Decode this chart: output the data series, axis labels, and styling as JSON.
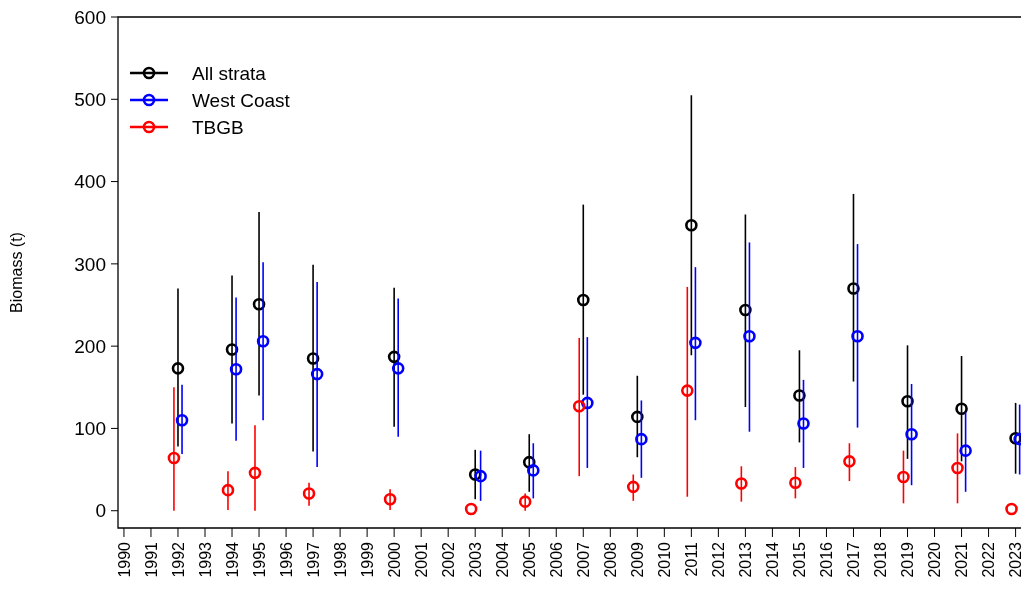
{
  "chart_data": {
    "type": "scatter",
    "ylabel": "Biomass (t)",
    "xlim": [
      1989.78,
      2023.2
    ],
    "xticks": [
      1990,
      1991,
      1992,
      1993,
      1994,
      1995,
      1996,
      1997,
      1998,
      1999,
      2000,
      2001,
      2002,
      2003,
      2004,
      2005,
      2006,
      2007,
      2008,
      2009,
      2010,
      2011,
      2012,
      2013,
      2014,
      2015,
      2016,
      2017,
      2018,
      2019,
      2020,
      2021,
      2022,
      2023
    ],
    "ylim": [
      -21,
      600
    ],
    "yticks": [
      0,
      100,
      200,
      300,
      400,
      500,
      600
    ],
    "x": [
      1992,
      1994,
      1995,
      1997,
      2000,
      2003,
      2005,
      2007,
      2009,
      2011,
      2013,
      2015,
      2017,
      2019,
      2021,
      2023
    ],
    "marker": "circle",
    "legend": "top left",
    "grid": false,
    "series": [
      {
        "name": "All strata",
        "color": "#000000",
        "values": [
          173,
          196,
          251,
          185,
          187,
          44,
          59,
          256,
          114,
          347,
          244,
          140,
          270,
          133,
          124,
          88
        ],
        "errors": [
          [
            78,
            270
          ],
          [
            106,
            286
          ],
          [
            140,
            363
          ],
          [
            72,
            299
          ],
          [
            102,
            271
          ],
          [
            14,
            74
          ],
          [
            23,
            93
          ],
          [
            141,
            372
          ],
          [
            65,
            164
          ],
          [
            189,
            505
          ],
          [
            126,
            360
          ],
          [
            83,
            195
          ],
          [
            157,
            385
          ],
          [
            63,
            201
          ],
          [
            60,
            188
          ],
          [
            45,
            131
          ]
        ]
      },
      {
        "name": "West Coast",
        "color": "#0000ff",
        "x": [
          1992.15,
          1994.15,
          1995.15,
          1997.15,
          2000.15,
          2003.2,
          2005.15,
          2007.15,
          2009.15,
          2011.15,
          2013.15,
          2015.15,
          2017.15,
          2019.15,
          2021.15,
          2023.15
        ],
        "values": [
          110,
          172,
          206,
          166,
          173,
          42,
          49,
          131,
          87,
          204,
          212,
          106,
          212,
          93,
          73,
          87
        ],
        "errors": [
          [
            69,
            153
          ],
          [
            85,
            259
          ],
          [
            110,
            302
          ],
          [
            53,
            278
          ],
          [
            90,
            258
          ],
          [
            12,
            73
          ],
          [
            15,
            82
          ],
          [
            52,
            211
          ],
          [
            40,
            134
          ],
          [
            110,
            296
          ],
          [
            96,
            326
          ],
          [
            52,
            159
          ],
          [
            101,
            324
          ],
          [
            31,
            154
          ],
          [
            23,
            120
          ],
          [
            44,
            129
          ]
        ]
      },
      {
        "name": "TBGB",
        "color": "#ff0000",
        "x": [
          1991.85,
          1993.85,
          1994.85,
          1996.85,
          1999.85,
          2002.85,
          2004.85,
          2006.85,
          2008.85,
          2010.85,
          2012.85,
          2014.85,
          2016.85,
          2018.85,
          2020.85,
          2022.85
        ],
        "values": [
          64,
          25,
          46,
          21,
          14,
          2,
          11,
          127,
          29,
          146,
          33,
          34,
          60,
          41,
          52,
          2
        ],
        "errors": [
          [
            0,
            150
          ],
          [
            1,
            48
          ],
          [
            0,
            104
          ],
          [
            6,
            34
          ],
          [
            1,
            26
          ],
          null,
          [
            0,
            21
          ],
          [
            42,
            210
          ],
          [
            12,
            44
          ],
          [
            17,
            272
          ],
          [
            11,
            54
          ],
          [
            15,
            53
          ],
          [
            36,
            82
          ],
          [
            9,
            73
          ],
          [
            9,
            94
          ],
          null
        ]
      }
    ]
  }
}
